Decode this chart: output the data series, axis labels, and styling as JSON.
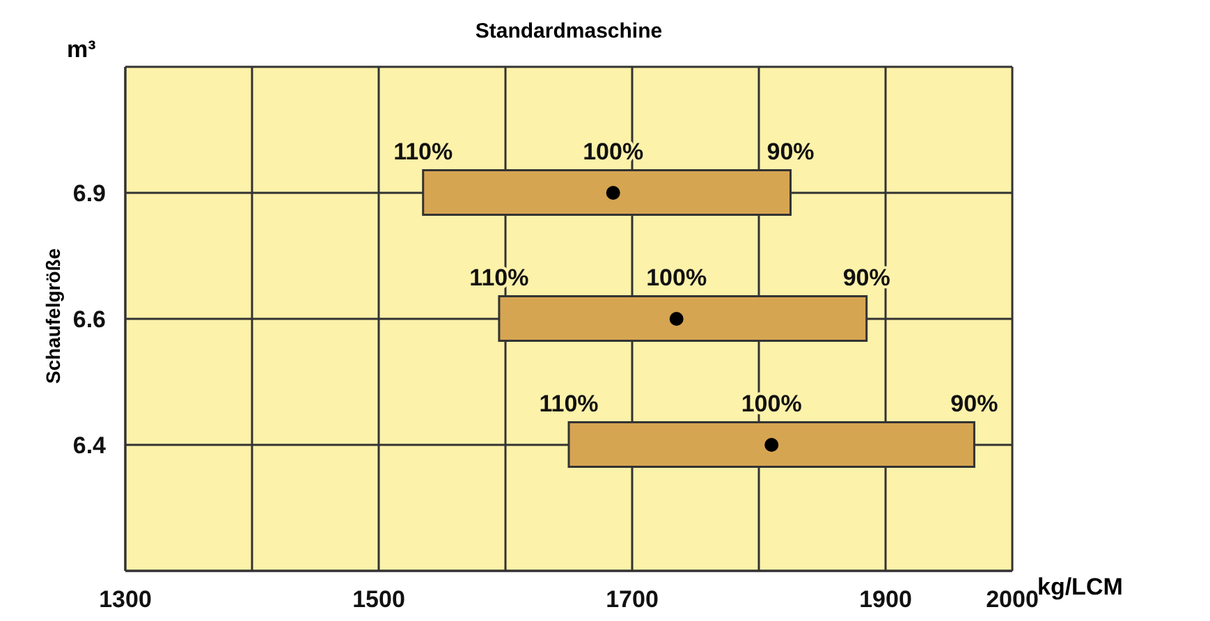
{
  "chart_data": {
    "type": "bar",
    "orientation": "horizontal",
    "title": "Standardmaschine",
    "xlabel": "kg/LCM",
    "ylabel": "Schaufelgröße",
    "categories": [
      "6.9",
      "6.6",
      "6.4"
    ],
    "series": [
      {
        "type": "bar",
        "color": "#d6a552",
        "base": [
          1535,
          1595,
          1650
        ],
        "values": [
          290,
          290,
          320
        ]
      },
      {
        "type": "scatter",
        "color": "#000000",
        "values": [
          1685,
          1735,
          1810
        ]
      }
    ],
    "xlim": [
      1300,
      2000
    ],
    "xticks": [
      1300,
      {
        "value": 1400,
        "label": null
      },
      1500,
      {
        "value": 1600,
        "label": null
      },
      1700,
      {
        "value": 1800,
        "label": null
      },
      1900,
      2000
    ],
    "grid": true,
    "annotations": [
      "m³",
      "110%",
      "100%",
      "90%",
      "110%",
      "100%",
      "90%",
      "110%",
      "100%",
      "90%"
    ]
  }
}
